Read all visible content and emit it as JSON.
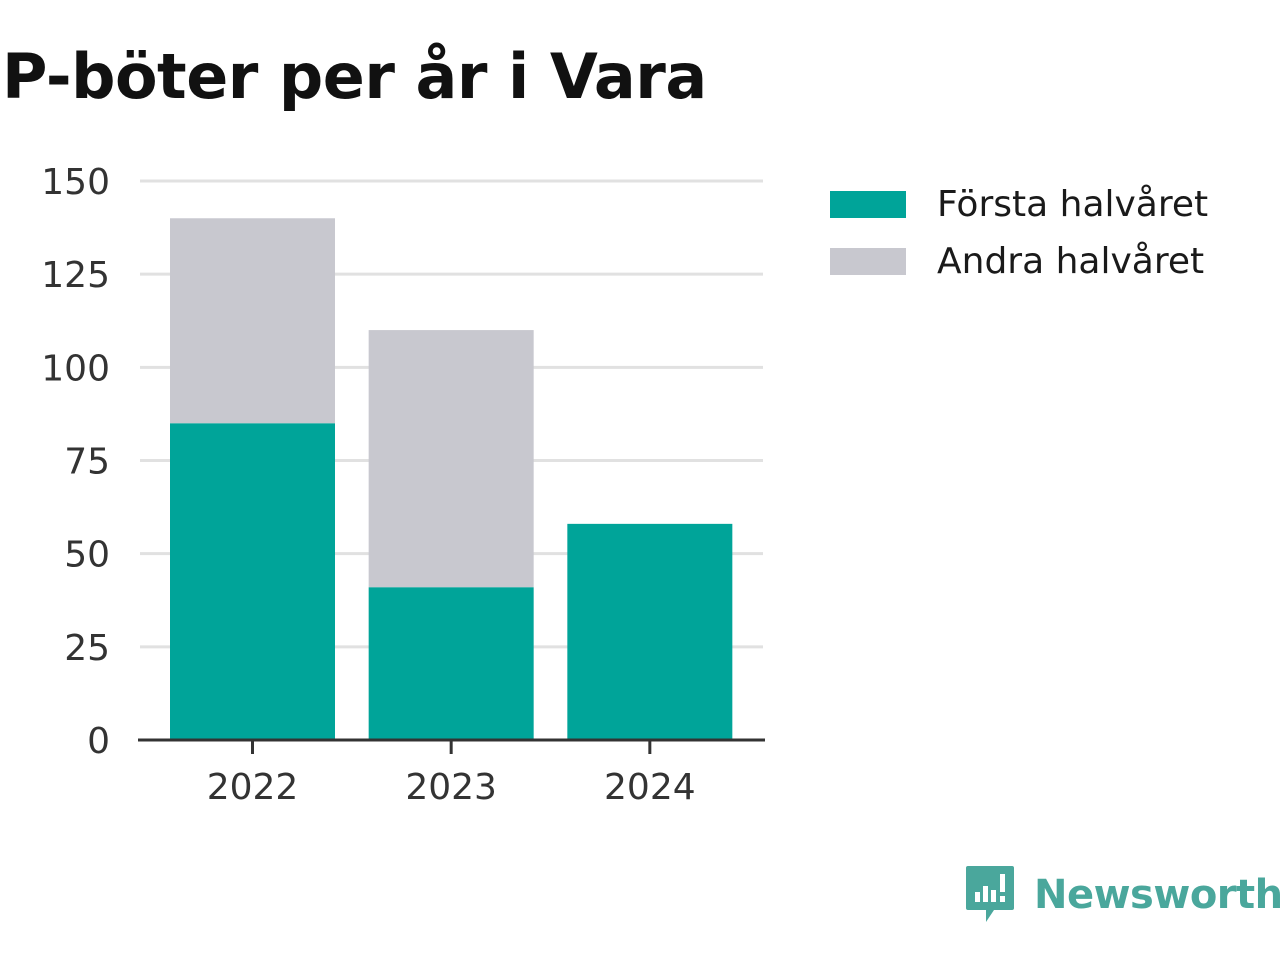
{
  "title": "P-böter per år i Vara",
  "colors": {
    "first_half": "#00a499",
    "second_half": "#c8c8cf",
    "grid": "#e1e1e1",
    "axis": "#333333",
    "brand": "#4aa79c"
  },
  "legend": {
    "items": [
      {
        "label": "Första halvåret",
        "color": "#00a499"
      },
      {
        "label": "Andra halvåret",
        "color": "#c8c8cf"
      }
    ]
  },
  "brand": {
    "name": "Newsworthy",
    "icon": "newsworthy-logo-icon"
  },
  "chart_data": {
    "type": "bar",
    "stacked": true,
    "categories": [
      "2022",
      "2023",
      "2024"
    ],
    "series": [
      {
        "name": "Första halvåret",
        "values": [
          85,
          41,
          58
        ]
      },
      {
        "name": "Andra halvåret",
        "values": [
          55,
          69,
          0
        ]
      }
    ],
    "ylim": [
      0,
      150
    ],
    "yticks": [
      0,
      25,
      50,
      75,
      100,
      125,
      150
    ],
    "grid": true,
    "legend_position": "right"
  }
}
